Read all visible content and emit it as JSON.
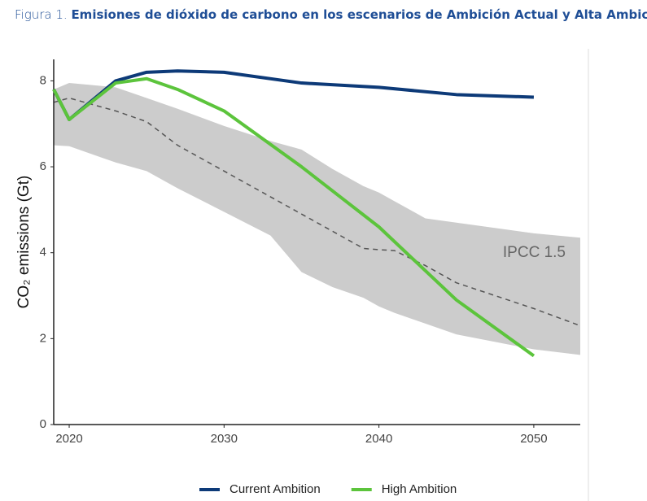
{
  "chart_data": {
    "type": "line",
    "figure_label": "Figura 1.",
    "title": "Emisiones de dióxido de carbono en los escenarios de Ambición Actual y Alta Ambición",
    "ylabel": "CO₂ emissions (Gt)",
    "x": [
      2019,
      2020,
      2023,
      2025,
      2027,
      2030,
      2035,
      2040,
      2045,
      2050
    ],
    "series": [
      {
        "name": "Current Ambition",
        "color": "#0d3a78",
        "values": [
          7.8,
          7.1,
          8.0,
          8.2,
          8.23,
          8.2,
          7.95,
          7.85,
          7.68,
          7.62
        ]
      },
      {
        "name": "High Ambition",
        "color": "#5cc43c",
        "values": [
          7.8,
          7.1,
          7.95,
          8.05,
          7.8,
          7.3,
          6.0,
          4.6,
          2.9,
          1.6
        ]
      }
    ],
    "band": {
      "label": "IPCC 1.5",
      "color": "#cccccc",
      "x": [
        2019,
        2020,
        2023,
        2025,
        2027,
        2030,
        2033,
        2035,
        2037,
        2039,
        2040,
        2041,
        2043,
        2045,
        2050,
        2053
      ],
      "upper": [
        7.8,
        7.95,
        7.85,
        7.6,
        7.35,
        6.95,
        6.6,
        6.4,
        5.95,
        5.55,
        5.4,
        5.2,
        4.8,
        4.7,
        4.45,
        4.35
      ],
      "median": [
        7.5,
        7.6,
        7.3,
        7.05,
        6.5,
        5.9,
        5.3,
        4.9,
        4.5,
        4.1,
        4.07,
        4.05,
        3.7,
        3.3,
        2.7,
        2.3
      ],
      "lower": [
        6.5,
        6.48,
        6.1,
        5.9,
        5.5,
        4.95,
        4.4,
        3.55,
        3.2,
        2.95,
        2.75,
        2.6,
        2.35,
        2.1,
        1.75,
        1.62
      ]
    },
    "xlim": [
      2019,
      2053
    ],
    "ylim": [
      0,
      8.5
    ],
    "xticks": [
      2020,
      2030,
      2040,
      2050
    ],
    "yticks": [
      0,
      2,
      4,
      6,
      8
    ],
    "grid": false,
    "legend": "bottom"
  }
}
